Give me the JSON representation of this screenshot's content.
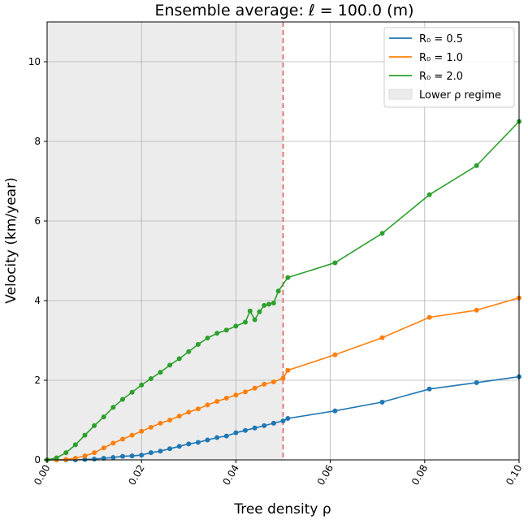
{
  "chart_data": {
    "type": "line",
    "title": "Ensemble average: ℓ = 100.0 (m)",
    "xlabel": "Tree density ρ",
    "ylabel": "Velocity (km/year)",
    "xlim": [
      0.0,
      0.1
    ],
    "ylim": [
      0,
      11
    ],
    "xticks": [
      0.0,
      0.02,
      0.04,
      0.06,
      0.08,
      0.1
    ],
    "xtick_labels": [
      "0.00",
      "0.02",
      "0.04",
      "0.06",
      "0.08",
      "0.10"
    ],
    "yticks": [
      0,
      2,
      4,
      6,
      8,
      10
    ],
    "ytick_labels": [
      "0",
      "2",
      "4",
      "6",
      "8",
      "10"
    ],
    "grid": true,
    "legend_position": "top-right",
    "shaded_region": {
      "x_range": [
        0.0,
        0.05
      ],
      "label": "Lower ρ regime",
      "color": "#ececec"
    },
    "vertical_line": {
      "x": 0.05,
      "color": "#e06060",
      "style": "dashed"
    },
    "series": [
      {
        "name": "R₀ =  0.5",
        "color": "#1f77b4",
        "x": [
          0.0,
          0.002,
          0.004,
          0.006,
          0.008,
          0.01,
          0.012,
          0.014,
          0.016,
          0.018,
          0.02,
          0.022,
          0.024,
          0.026,
          0.028,
          0.03,
          0.032,
          0.034,
          0.036,
          0.038,
          0.04,
          0.042,
          0.044,
          0.046,
          0.048,
          0.05,
          0.051,
          0.061,
          0.071,
          0.081,
          0.091,
          0.1
        ],
        "y": [
          0.0,
          0.0,
          0.0,
          0.0,
          0.01,
          0.02,
          0.04,
          0.06,
          0.09,
          0.1,
          0.12,
          0.18,
          0.22,
          0.28,
          0.34,
          0.4,
          0.44,
          0.5,
          0.56,
          0.6,
          0.68,
          0.74,
          0.8,
          0.86,
          0.92,
          0.98,
          1.04,
          1.23,
          1.45,
          1.78,
          1.94,
          2.09
        ]
      },
      {
        "name": "R₀ =  1.0",
        "color": "#ff7f0e",
        "x": [
          0.0,
          0.002,
          0.004,
          0.006,
          0.008,
          0.01,
          0.012,
          0.014,
          0.016,
          0.018,
          0.02,
          0.022,
          0.024,
          0.026,
          0.028,
          0.03,
          0.032,
          0.034,
          0.036,
          0.038,
          0.04,
          0.042,
          0.044,
          0.046,
          0.048,
          0.05,
          0.051,
          0.061,
          0.071,
          0.081,
          0.091,
          0.1
        ],
        "y": [
          0.0,
          0.0,
          0.01,
          0.04,
          0.1,
          0.18,
          0.3,
          0.42,
          0.52,
          0.62,
          0.72,
          0.82,
          0.92,
          1.0,
          1.1,
          1.2,
          1.28,
          1.38,
          1.47,
          1.55,
          1.63,
          1.71,
          1.8,
          1.9,
          1.96,
          2.05,
          2.25,
          2.64,
          3.07,
          3.58,
          3.76,
          4.07
        ]
      },
      {
        "name": "R₀ =  2.0",
        "color": "#2ca02c",
        "x": [
          0.0,
          0.002,
          0.004,
          0.006,
          0.008,
          0.01,
          0.012,
          0.014,
          0.016,
          0.018,
          0.02,
          0.022,
          0.024,
          0.026,
          0.028,
          0.03,
          0.032,
          0.034,
          0.036,
          0.038,
          0.04,
          0.042,
          0.043,
          0.044,
          0.045,
          0.046,
          0.047,
          0.048,
          0.049,
          0.051,
          0.061,
          0.071,
          0.081,
          0.091,
          0.1
        ],
        "y": [
          0.0,
          0.05,
          0.18,
          0.38,
          0.62,
          0.86,
          1.08,
          1.32,
          1.52,
          1.7,
          1.88,
          2.04,
          2.2,
          2.38,
          2.54,
          2.72,
          2.9,
          3.06,
          3.18,
          3.26,
          3.36,
          3.46,
          3.74,
          3.52,
          3.72,
          3.88,
          3.91,
          3.94,
          4.24,
          4.58,
          4.95,
          5.69,
          6.66,
          7.39,
          8.5
        ]
      }
    ]
  }
}
